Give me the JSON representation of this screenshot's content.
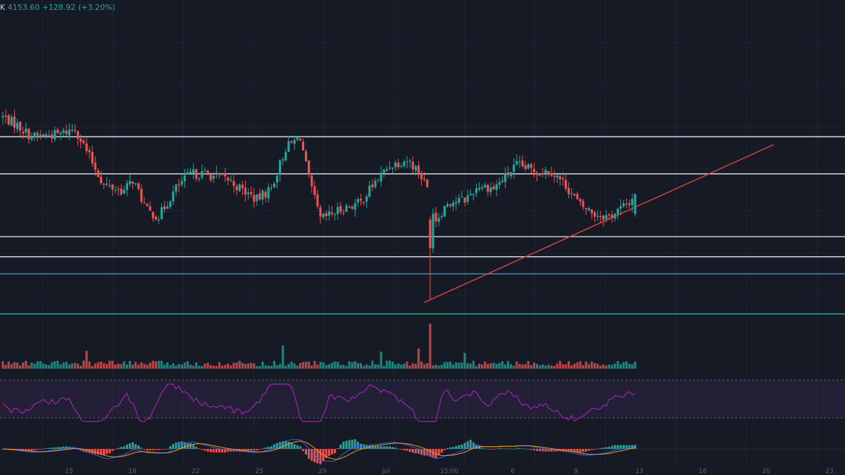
{
  "header": {
    "symbol_fragment": "K",
    "last_price": "4153.60",
    "change": "+128.92",
    "change_pct": "(+3.20%)"
  },
  "colors": {
    "background": "#161a25",
    "up": "#26a69a",
    "down": "#ef5350",
    "white_level": "#c9ccd4",
    "blue_level": "#4a90d9",
    "green_level": "#26a69a",
    "trendline": "#e0443e",
    "rsi": "#9c27b0",
    "rsi_band": "#3a2a55",
    "macd_line": "#2962ff",
    "signal_line": "#ff9800"
  },
  "price_pane": {
    "white_levels": [
      0.62,
      0.49,
      0.27,
      0.2
    ],
    "blue_level": 0.14,
    "green_level": 0.0,
    "trendline": {
      "from_bar": 146,
      "from_level": 0.05,
      "to_bar": 267,
      "to_level": 0.42
    }
  },
  "x_axis_labels": [
    "15",
    "18",
    "22",
    "25",
    "29",
    "Jul",
    "15:00",
    "6",
    "9",
    "13",
    "16",
    "20",
    "23"
  ],
  "chart_data": {
    "type": "candlestick",
    "title": "",
    "xlabel": "",
    "ylabel": "",
    "close_path": [
      [
        0,
        0.69
      ],
      [
        5,
        0.66
      ],
      [
        10,
        0.62
      ],
      [
        20,
        0.63
      ],
      [
        25,
        0.65
      ],
      [
        30,
        0.55
      ],
      [
        35,
        0.45
      ],
      [
        42,
        0.43
      ],
      [
        45,
        0.47
      ],
      [
        50,
        0.36
      ],
      [
        54,
        0.34
      ],
      [
        60,
        0.44
      ],
      [
        65,
        0.49
      ],
      [
        70,
        0.49
      ],
      [
        78,
        0.47
      ],
      [
        82,
        0.44
      ],
      [
        88,
        0.4
      ],
      [
        93,
        0.44
      ],
      [
        98,
        0.58
      ],
      [
        103,
        0.62
      ],
      [
        106,
        0.47
      ],
      [
        110,
        0.33
      ],
      [
        118,
        0.37
      ],
      [
        124,
        0.39
      ],
      [
        128,
        0.45
      ],
      [
        134,
        0.52
      ],
      [
        140,
        0.54
      ],
      [
        144,
        0.5
      ],
      [
        147,
        0.44
      ],
      [
        150,
        0.33
      ],
      [
        154,
        0.39
      ],
      [
        160,
        0.4
      ],
      [
        165,
        0.45
      ],
      [
        170,
        0.44
      ],
      [
        178,
        0.52
      ],
      [
        185,
        0.5
      ],
      [
        190,
        0.5
      ],
      [
        195,
        0.45
      ],
      [
        200,
        0.38
      ],
      [
        205,
        0.35
      ],
      [
        210,
        0.34
      ],
      [
        217,
        0.39
      ],
      [
        219,
        0.42
      ]
    ],
    "special_candles": [
      {
        "bar": 148,
        "direction": "down",
        "open": 0.33,
        "close": 0.23,
        "high": 0.34,
        "low": 0.05
      },
      {
        "bar": 219,
        "direction": "up",
        "open": 0.35,
        "close": 0.42,
        "high": 0.42,
        "low": 0.34
      }
    ],
    "volume_spikes": [
      {
        "bar": 148,
        "value": 1.0
      },
      {
        "bar": 97,
        "value": 0.52
      },
      {
        "bar": 144,
        "value": 0.45
      },
      {
        "bar": 29,
        "value": 0.4
      },
      {
        "bar": 131,
        "value": 0.38
      },
      {
        "bar": 160,
        "value": 0.35
      }
    ],
    "rsi_range": [
      20,
      80
    ],
    "rsi_bands": [
      70,
      30
    ]
  }
}
